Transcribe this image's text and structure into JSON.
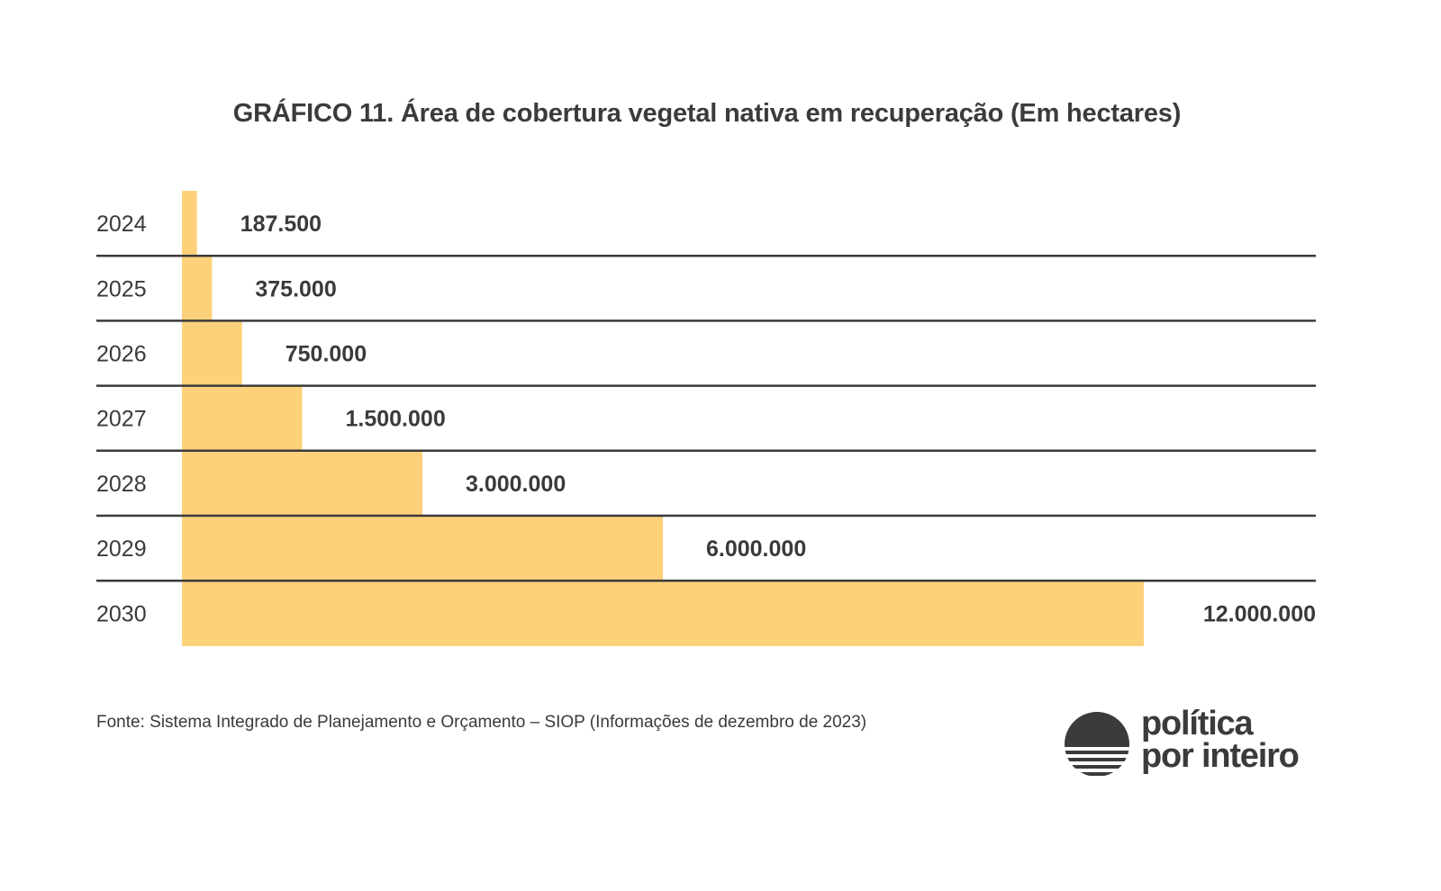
{
  "chart_data": {
    "type": "bar",
    "orientation": "horizontal",
    "title": "GRÁFICO 11.  Área de cobertura vegetal nativa em recuperação (Em hectares)",
    "xlabel": "",
    "ylabel": "",
    "categories": [
      "2024",
      "2025",
      "2026",
      "2027",
      "2028",
      "2029",
      "2030"
    ],
    "values": [
      187500,
      375000,
      750000,
      1500000,
      3000000,
      6000000,
      12000000
    ],
    "data_labels": [
      "187.500",
      "375.000",
      "750.000",
      "1.500.000",
      "3.000.000",
      "6.000.000",
      "12.000.000"
    ],
    "xlim": [
      0,
      12000000
    ],
    "grid": false,
    "legend": "none",
    "bar_color": "#fdd17a",
    "separator_color": "#3a3a3a"
  },
  "source": "Fonte: Sistema Integrado de Planejamento e Orçamento – SIOP (Informações de dezembro de 2023)",
  "logo": {
    "line1": "política",
    "line2": "por inteiro",
    "icon": "sunset-icon"
  }
}
